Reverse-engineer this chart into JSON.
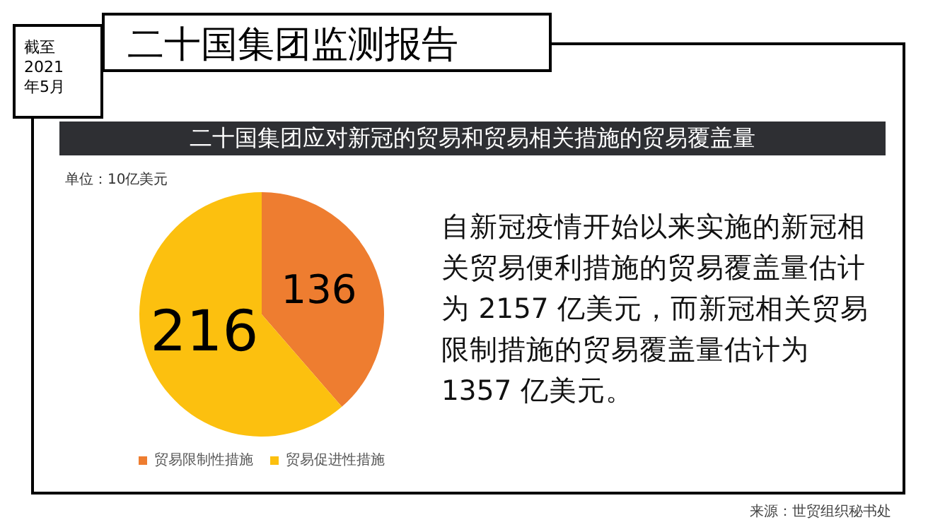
{
  "chart_data": {
    "type": "pie",
    "title": "二十国集团应对新冠的贸易和贸易相关措施的贸易覆盖量",
    "categories": [
      "贸易限制性措施",
      "贸易促进性措施"
    ],
    "values": [
      136,
      216
    ],
    "colors": [
      "#ee7d30",
      "#fcc00f"
    ],
    "data_labels": true,
    "legend": "bottom",
    "annotations": [
      "二十国集团监测报告",
      "截至\n2021\n年5月",
      "单位：10亿美元",
      "自新冠疫情开始以来实施的新冠相关贸易便利措施的贸易覆盖量估计为 2157 亿美元，而新冠相关贸易限制措施的贸易覆盖量估计为 1357 亿美元。",
      "来源：世贸组织秘书处"
    ]
  }
}
